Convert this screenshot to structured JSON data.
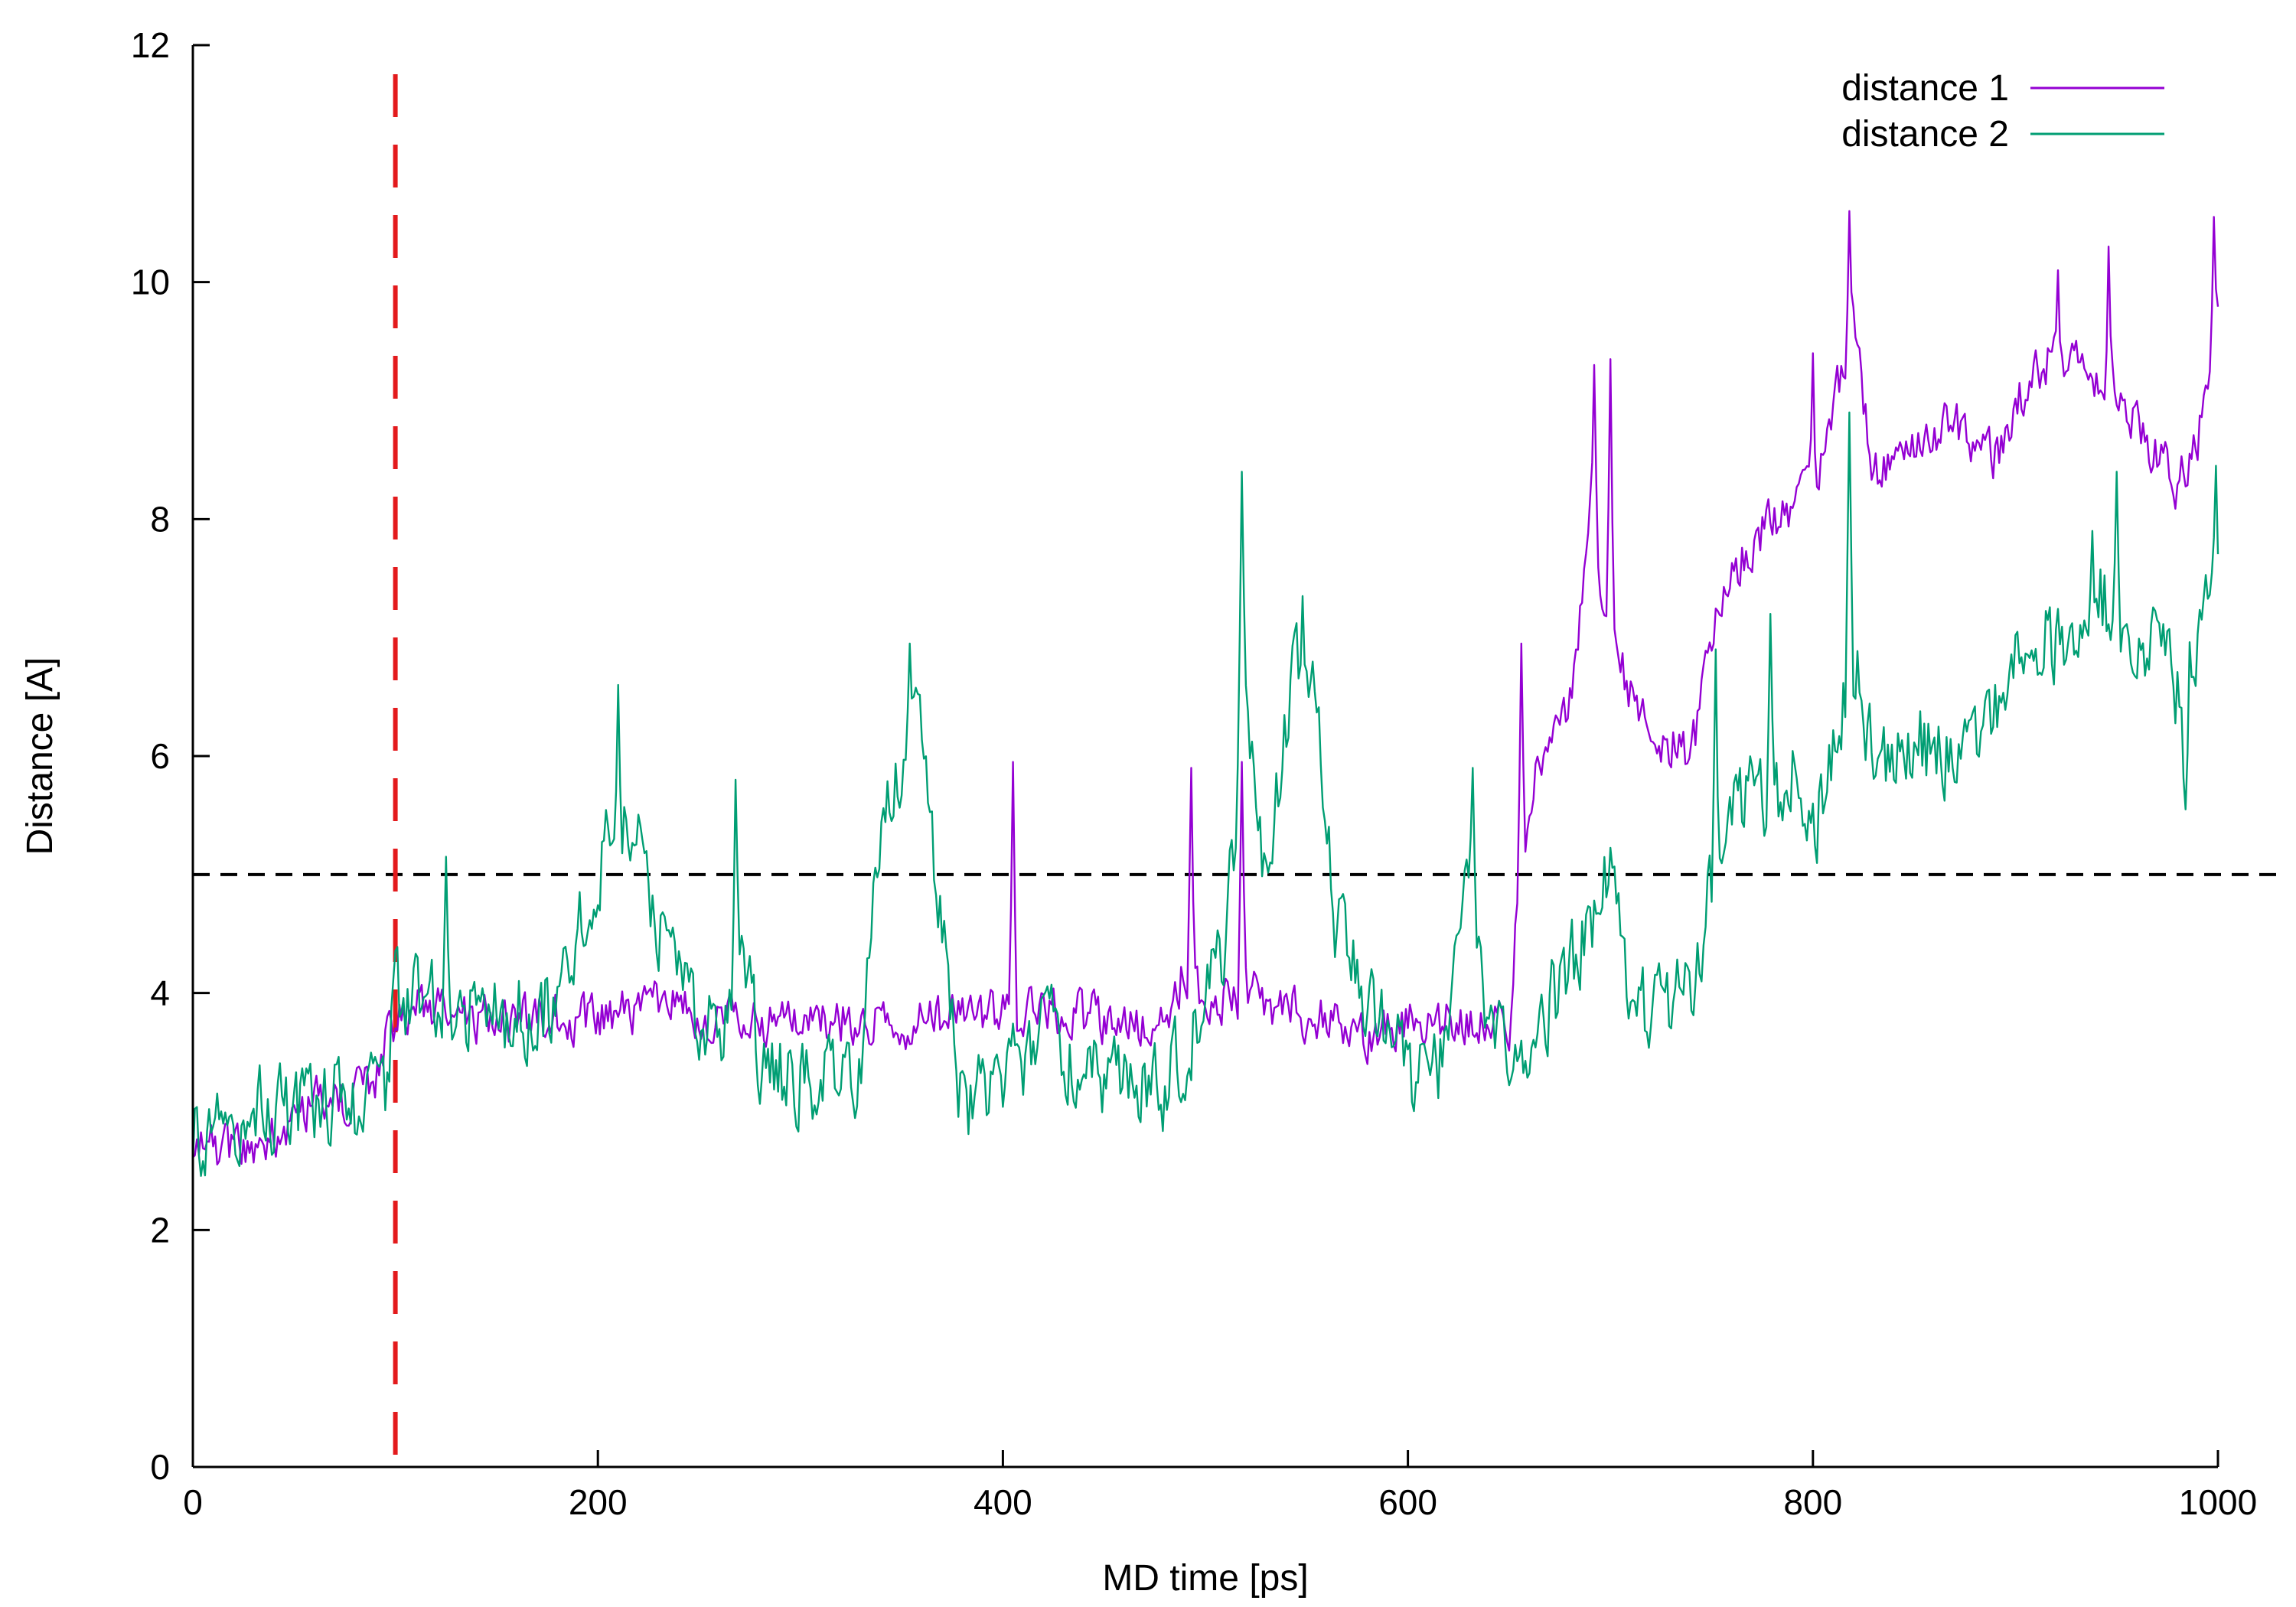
{
  "chart_data": {
    "type": "line",
    "xlabel": "MD time [ps]",
    "ylabel": "Distance [A]",
    "xlim": [
      0,
      1000
    ],
    "ylim": [
      0,
      12
    ],
    "xticks": [
      0,
      200,
      400,
      600,
      800,
      1000
    ],
    "yticks": [
      0,
      2,
      4,
      6,
      8,
      10,
      12
    ],
    "grid": false,
    "legend_position": "top-right",
    "reference_lines": [
      {
        "orientation": "horizontal",
        "value": 5,
        "color": "#000000",
        "style": "dashed"
      },
      {
        "orientation": "vertical",
        "value": 100,
        "color": "#e31a1c",
        "style": "dashed"
      }
    ],
    "series": [
      {
        "name": "distance 1",
        "color": "#9400d3",
        "keypoints": [
          [
            0,
            2.6
          ],
          [
            10,
            2.7
          ],
          [
            20,
            2.7
          ],
          [
            30,
            2.65
          ],
          [
            40,
            2.8
          ],
          [
            50,
            2.95
          ],
          [
            60,
            3.1
          ],
          [
            70,
            3.1
          ],
          [
            80,
            3.15
          ],
          [
            90,
            3.3
          ],
          [
            95,
            3.6
          ],
          [
            100,
            3.7
          ],
          [
            110,
            3.9
          ],
          [
            130,
            3.8
          ],
          [
            160,
            3.75
          ],
          [
            180,
            3.8
          ],
          [
            200,
            3.75
          ],
          [
            230,
            3.9
          ],
          [
            260,
            3.75
          ],
          [
            300,
            3.75
          ],
          [
            350,
            3.75
          ],
          [
            390,
            3.8
          ],
          [
            400,
            3.9
          ],
          [
            440,
            3.8
          ],
          [
            480,
            3.7
          ],
          [
            490,
            4.2
          ],
          [
            500,
            3.9
          ],
          [
            520,
            4.0
          ],
          [
            550,
            3.8
          ],
          [
            580,
            3.65
          ],
          [
            600,
            3.8
          ],
          [
            640,
            3.8
          ],
          [
            650,
            3.75
          ],
          [
            655,
            5.0
          ],
          [
            665,
            6.0
          ],
          [
            680,
            6.5
          ],
          [
            690,
            8.0
          ],
          [
            700,
            7.0
          ],
          [
            710,
            6.5
          ],
          [
            720,
            6.2
          ],
          [
            740,
            6.0
          ],
          [
            750,
            7.0
          ],
          [
            760,
            7.5
          ],
          [
            770,
            7.8
          ],
          [
            780,
            8.0
          ],
          [
            800,
            8.2
          ],
          [
            810,
            9.0
          ],
          [
            820,
            9.6
          ],
          [
            830,
            8.4
          ],
          [
            850,
            8.7
          ],
          [
            870,
            8.8
          ],
          [
            890,
            8.5
          ],
          [
            900,
            9.0
          ],
          [
            920,
            9.4
          ],
          [
            940,
            9.2
          ],
          [
            950,
            9.1
          ],
          [
            960,
            8.8
          ],
          [
            980,
            8.3
          ],
          [
            990,
            8.7
          ],
          [
            1000,
            9.6
          ]
        ],
        "noise": 0.18,
        "spikes": [
          [
            405,
            5.95
          ],
          [
            493,
            5.9
          ],
          [
            518,
            5.95
          ],
          [
            656,
            6.95
          ],
          [
            692,
            9.3
          ],
          [
            700,
            9.35
          ],
          [
            800,
            9.4
          ],
          [
            818,
            10.6
          ],
          [
            921,
            10.1
          ],
          [
            946,
            10.3
          ],
          [
            998,
            10.55
          ]
        ]
      },
      {
        "name": "distance 2",
        "color": "#009e73",
        "keypoints": [
          [
            0,
            2.8
          ],
          [
            20,
            3.0
          ],
          [
            40,
            3.0
          ],
          [
            60,
            3.05
          ],
          [
            80,
            3.1
          ],
          [
            95,
            3.2
          ],
          [
            100,
            4.0
          ],
          [
            120,
            3.9
          ],
          [
            150,
            3.8
          ],
          [
            180,
            3.9
          ],
          [
            195,
            4.8
          ],
          [
            210,
            5.6
          ],
          [
            220,
            5.3
          ],
          [
            240,
            4.0
          ],
          [
            260,
            3.6
          ],
          [
            270,
            4.5
          ],
          [
            280,
            3.5
          ],
          [
            300,
            3.2
          ],
          [
            330,
            3.3
          ],
          [
            340,
            5.5
          ],
          [
            350,
            6.0
          ],
          [
            360,
            6.3
          ],
          [
            370,
            4.5
          ],
          [
            380,
            3.0
          ],
          [
            400,
            3.2
          ],
          [
            420,
            3.7
          ],
          [
            440,
            3.4
          ],
          [
            460,
            3.2
          ],
          [
            480,
            3.2
          ],
          [
            500,
            3.8
          ],
          [
            510,
            4.5
          ],
          [
            520,
            6.5
          ],
          [
            530,
            5.0
          ],
          [
            545,
            6.8
          ],
          [
            555,
            6.5
          ],
          [
            565,
            4.5
          ],
          [
            580,
            3.9
          ],
          [
            600,
            3.3
          ],
          [
            620,
            3.4
          ],
          [
            630,
            5.2
          ],
          [
            640,
            3.6
          ],
          [
            660,
            3.6
          ],
          [
            680,
            4.2
          ],
          [
            700,
            5.0
          ],
          [
            710,
            3.8
          ],
          [
            730,
            3.9
          ],
          [
            740,
            4.0
          ],
          [
            750,
            5.0
          ],
          [
            760,
            5.5
          ],
          [
            770,
            5.8
          ],
          [
            780,
            5.5
          ],
          [
            790,
            6.0
          ],
          [
            800,
            5.3
          ],
          [
            810,
            6.0
          ],
          [
            820,
            6.8
          ],
          [
            830,
            6.0
          ],
          [
            850,
            6.1
          ],
          [
            870,
            6.0
          ],
          [
            890,
            6.5
          ],
          [
            900,
            7.0
          ],
          [
            920,
            7.0
          ],
          [
            940,
            7.4
          ],
          [
            960,
            7.0
          ],
          [
            980,
            6.6
          ],
          [
            990,
            6.8
          ],
          [
            1000,
            7.5
          ]
        ],
        "noise": 0.32,
        "spikes": [
          [
            125,
            5.15
          ],
          [
            210,
            6.6
          ],
          [
            268,
            5.8
          ],
          [
            354,
            6.95
          ],
          [
            518,
            8.4
          ],
          [
            548,
            7.35
          ],
          [
            632,
            5.9
          ],
          [
            752,
            6.9
          ],
          [
            779,
            7.2
          ],
          [
            818,
            8.9
          ],
          [
            890,
            6.6
          ],
          [
            938,
            7.9
          ],
          [
            950,
            8.4
          ],
          [
            984,
            5.55
          ],
          [
            999,
            8.45
          ]
        ]
      }
    ]
  }
}
